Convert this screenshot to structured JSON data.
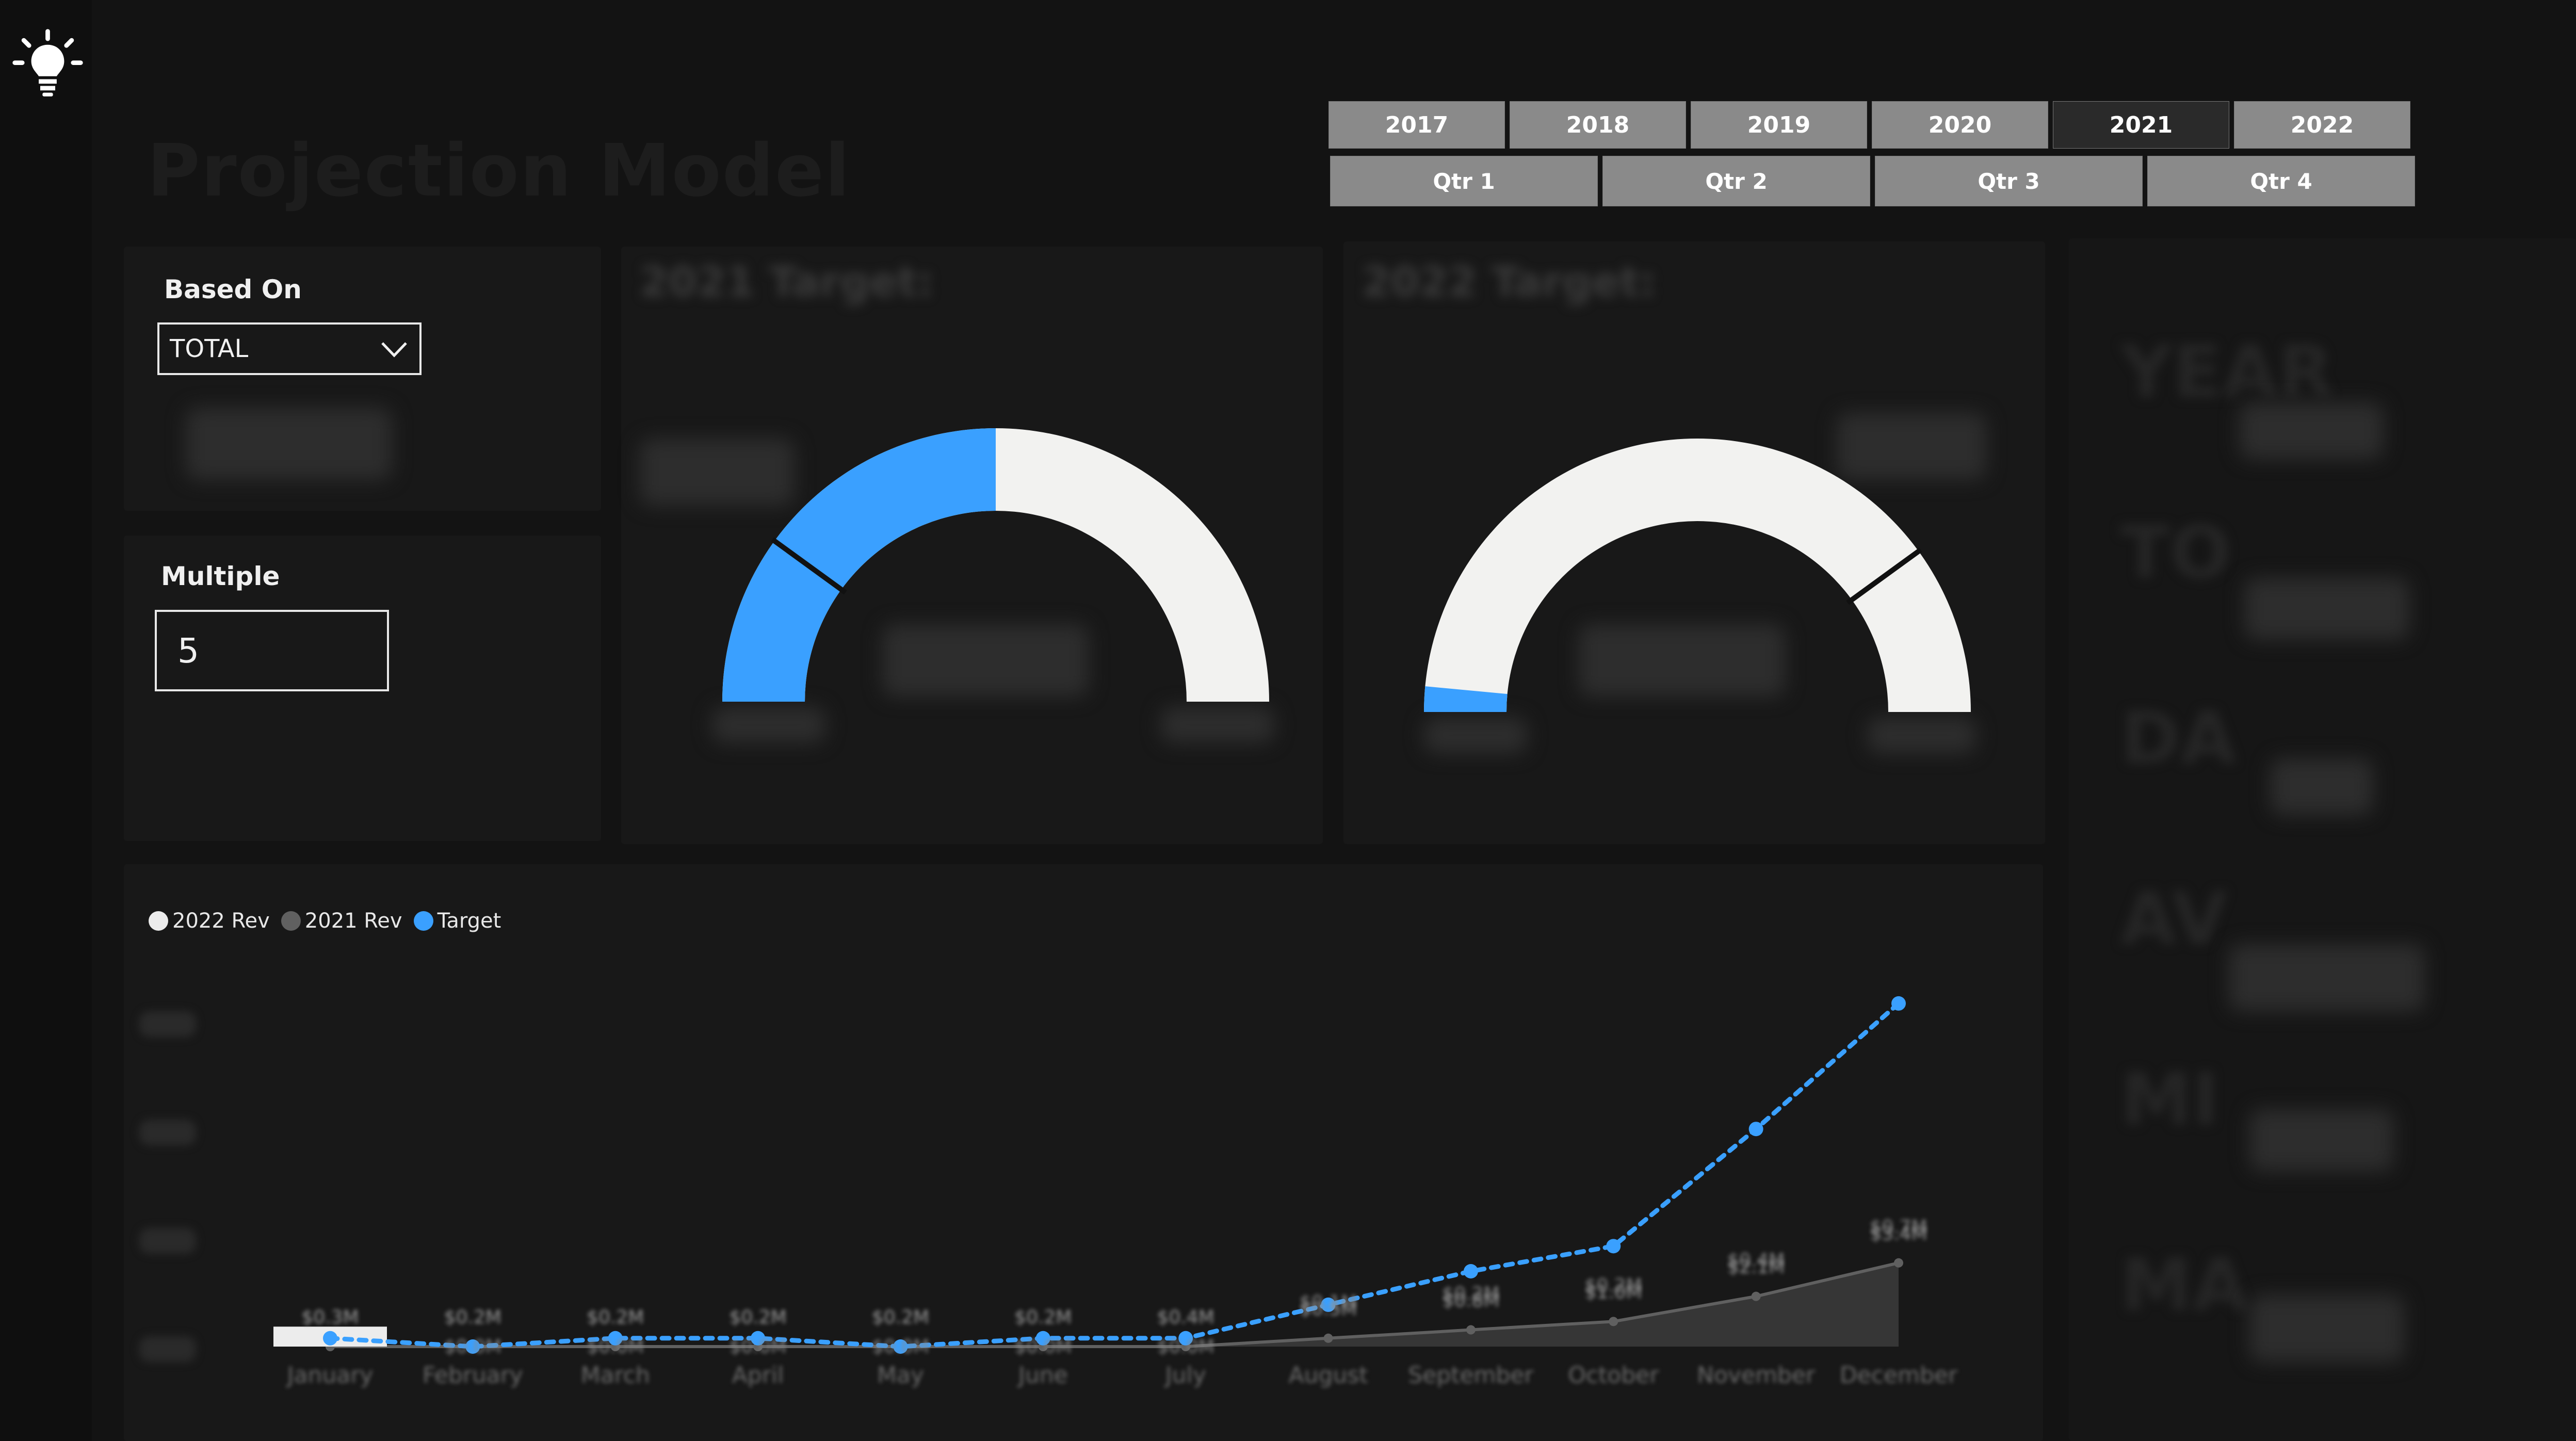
{
  "header": {
    "title": "Projection Model"
  },
  "year_slicer": {
    "items": [
      {
        "label": "2017",
        "selected": false
      },
      {
        "label": "2018",
        "selected": false
      },
      {
        "label": "2019",
        "selected": false
      },
      {
        "label": "2020",
        "selected": false
      },
      {
        "label": "2021",
        "selected": true
      },
      {
        "label": "2022",
        "selected": false
      }
    ]
  },
  "quarter_slicer": {
    "items": [
      {
        "label": "Qtr 1"
      },
      {
        "label": "Qtr 2"
      },
      {
        "label": "Qtr 3"
      },
      {
        "label": "Qtr 4"
      }
    ]
  },
  "based_on": {
    "label": "Based On",
    "selected": "TOTAL"
  },
  "multiple": {
    "label": "Multiple",
    "value": "5"
  },
  "targets": {
    "t2021_title": "2021 Target:",
    "t2022_title": "2022 Target:"
  },
  "gauges": {
    "g2021_fraction": 0.5,
    "g2022_fraction": 0.03,
    "g2021_target_fraction": 0.2,
    "g2022_target_fraction": 0.8
  },
  "colors": {
    "accent": "#3aa0ff",
    "gauge_track": "#f2f2f0",
    "rev_2021": "#606060",
    "rev_2022": "#ececec"
  },
  "right_panel": {
    "labels": [
      "YEAR",
      "TO",
      "DA",
      "AV",
      "MI",
      "MA"
    ]
  },
  "chart_data": {
    "type": "line",
    "legend": [
      "2022 Rev",
      "2021 Rev",
      "Target"
    ],
    "categories": [
      "January",
      "February",
      "March",
      "April",
      "May",
      "June",
      "July",
      "August",
      "September",
      "October",
      "November",
      "December"
    ],
    "series": [
      {
        "name": "Target",
        "values": [
          0.1,
          0.0,
          0.1,
          0.1,
          0.0,
          0.1,
          0.1,
          0.5,
          0.9,
          1.2,
          2.6,
          4.1
        ]
      },
      {
        "name": "2021 Rev",
        "values": [
          0.0,
          0.0,
          0.0,
          0.0,
          0.0,
          0.0,
          0.0,
          0.1,
          0.2,
          0.3,
          0.6,
          1.0
        ]
      },
      {
        "name": "2022 Rev",
        "values": [
          0.3,
          null,
          null,
          null,
          null,
          null,
          null,
          null,
          null,
          null,
          null,
          null
        ]
      }
    ],
    "data_labels": {
      "top": [
        "$0.3M",
        "$0.2M",
        "$0.2M",
        "$0.2M",
        "$0.2M",
        "$0.2M",
        "$0.4M",
        "$0.5M",
        "$0.8M",
        "$1.0M",
        "$2.1M",
        "$3.4M"
      ],
      "bottom": [
        "",
        "$0.0M",
        "$0.0M",
        "$0.0M",
        "$0.0M",
        "$0.0M",
        "$0.0M",
        "$0.1M",
        "$0.2M",
        "$0.2M",
        "$0.4M",
        "$0.7M"
      ]
    },
    "ylim": [
      0,
      4.5
    ]
  }
}
